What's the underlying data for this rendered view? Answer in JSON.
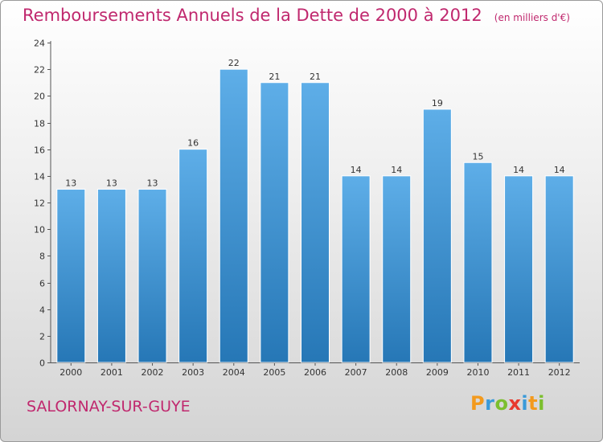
{
  "title": "Remboursements Annuels de la Dette de 2000 à 2012",
  "unit_note": "(en milliers d'€)",
  "city": "SALORNAY-SUR-GUYE",
  "logo": {
    "letters": [
      "P",
      "r",
      "o",
      "x",
      "i",
      "t",
      "i"
    ],
    "colors": [
      "#f39a1d",
      "#3a9ad9",
      "#7cbf2e",
      "#e8392e",
      "#3a9ad9",
      "#f39a1d",
      "#7cbf2e"
    ]
  },
  "colors": {
    "title": "#c0286e",
    "bar_top": "#5eaee8",
    "bar_bottom": "#2677b6"
  },
  "chart_data": {
    "type": "bar",
    "categories": [
      "2000",
      "2001",
      "2002",
      "2003",
      "2004",
      "2005",
      "2006",
      "2007",
      "2008",
      "2009",
      "2010",
      "2011",
      "2012"
    ],
    "values": [
      13,
      13,
      13,
      16,
      22,
      21,
      21,
      14,
      14,
      19,
      15,
      14,
      14
    ],
    "yticks": [
      0,
      2,
      4,
      6,
      8,
      10,
      12,
      14,
      16,
      18,
      20,
      22,
      24
    ],
    "ylim": [
      0,
      24
    ],
    "grid": false,
    "legend": false
  }
}
